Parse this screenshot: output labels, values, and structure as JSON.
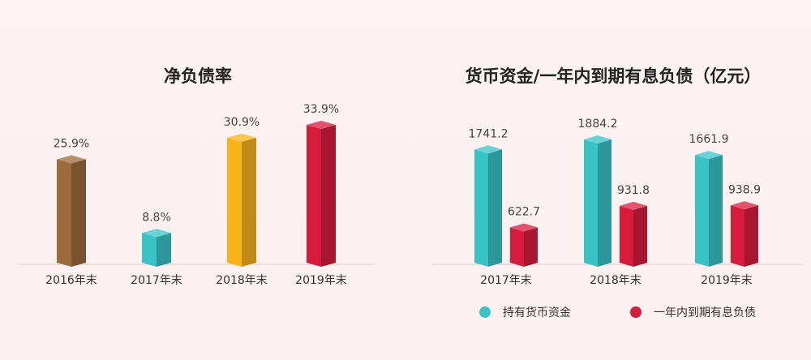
{
  "chart_data": [
    {
      "type": "bar",
      "title": "净负债率",
      "categories": [
        "2016年末",
        "2017年末",
        "2018年末",
        "2019年末"
      ],
      "values": [
        25.9,
        8.8,
        30.9,
        33.9
      ],
      "value_labels": [
        "25.9%",
        "8.8%",
        "30.9%",
        "33.9%"
      ],
      "unit": "%",
      "bar_colors": [
        "#9c6b3c",
        "#38c3c7",
        "#f7b318",
        "#d81b3c"
      ],
      "grid": false
    },
    {
      "type": "bar",
      "title": "货币资金/一年内到期有息负债（亿元）",
      "categories": [
        "2017年末",
        "2018年末",
        "2019年末"
      ],
      "series": [
        {
          "name": "持有货币资金",
          "values": [
            1741.2,
            1884.2,
            1661.9
          ],
          "labels": [
            "1741.2",
            "1884.2",
            "1661.9"
          ],
          "color": "#38c3c7"
        },
        {
          "name": "一年内到期有息负债",
          "values": [
            622.7,
            931.8,
            938.9
          ],
          "labels": [
            "622.7",
            "931.8",
            "938.9"
          ],
          "color": "#d81b3c"
        }
      ],
      "legend_position": "bottom",
      "grid": false
    }
  ]
}
